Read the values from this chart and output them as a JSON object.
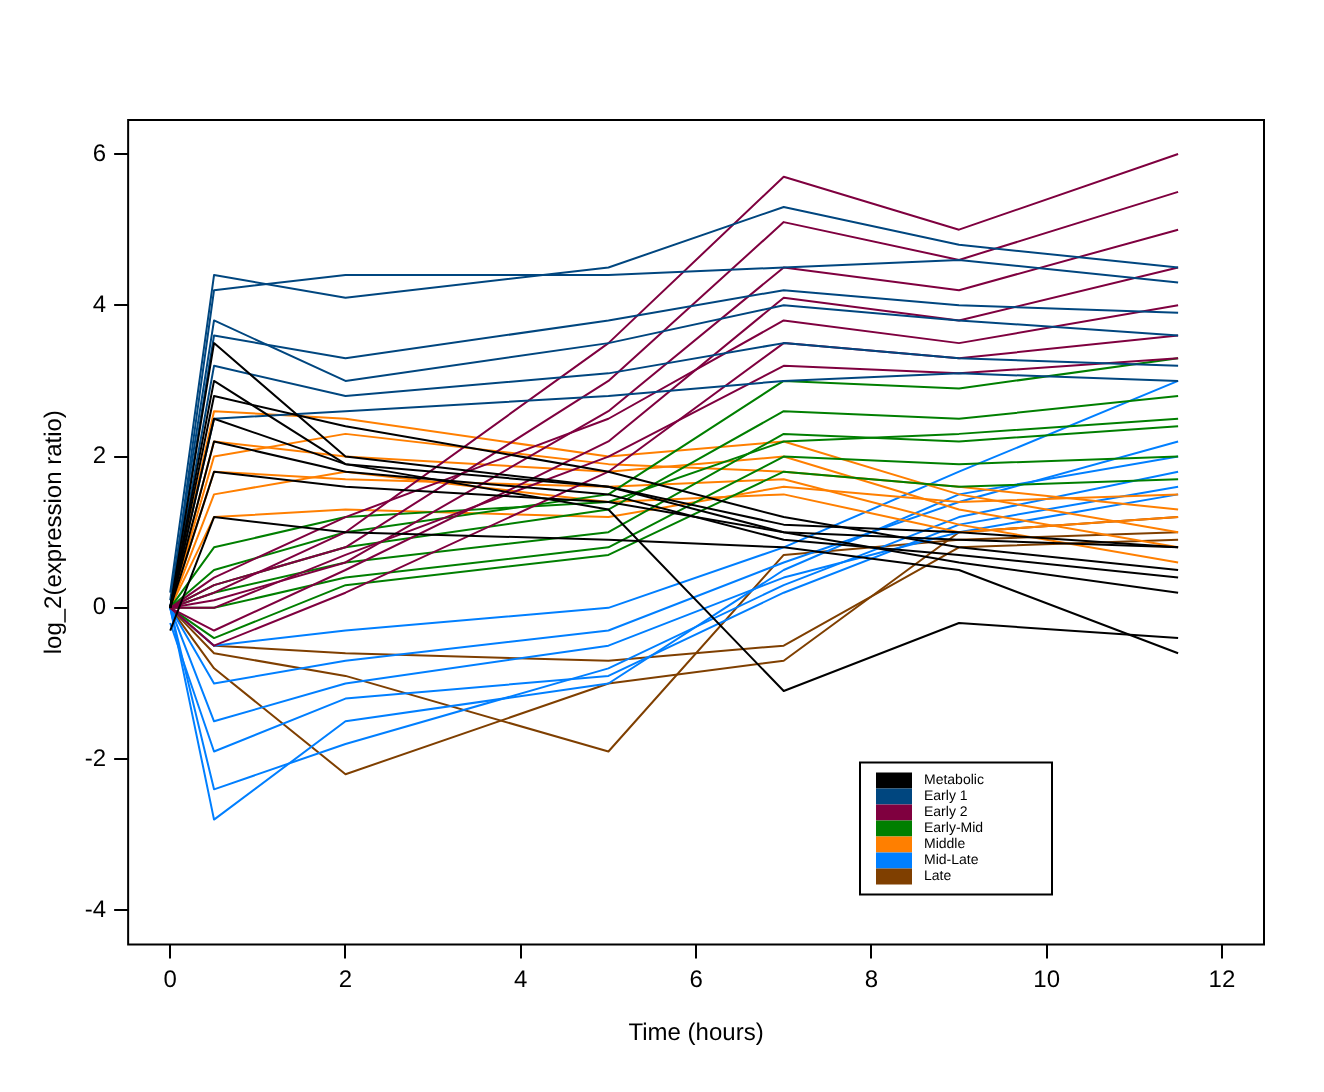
{
  "chart_data": {
    "type": "line",
    "xlabel": "Time (hours)",
    "ylabel": "log_2(expression ratio)",
    "x": [
      0,
      0.5,
      2,
      5,
      7,
      9,
      11.5
    ],
    "xlim": [
      -0.48,
      12.48
    ],
    "ylim": [
      -4.45,
      6.45
    ],
    "xticks": [
      0,
      2,
      4,
      6,
      8,
      10,
      12
    ],
    "yticks": [
      -4,
      -2,
      0,
      2,
      4,
      6
    ],
    "legend": "bottom right",
    "marker": "none",
    "line_style": "solid",
    "series": [
      {
        "name": "Metabolic",
        "color": "#000000",
        "values": [
          0,
          3.5,
          2.0,
          1.6,
          1.0,
          0.6,
          0.2
        ]
      },
      {
        "color": "#000000",
        "values": [
          0,
          2.8,
          2.4,
          1.8,
          1.2,
          0.8,
          0.5
        ]
      },
      {
        "color": "#000000",
        "values": [
          0,
          2.2,
          1.8,
          1.5,
          0.9,
          0.7,
          0.4
        ]
      },
      {
        "color": "#000000",
        "values": [
          0,
          1.8,
          1.6,
          1.4,
          1.0,
          0.9,
          0.8
        ]
      },
      {
        "color": "#000000",
        "values": [
          0,
          3.0,
          1.9,
          1.3,
          -1.1,
          -0.2,
          -0.4
        ]
      },
      {
        "color": "#000000",
        "values": [
          -0.3,
          1.2,
          1.0,
          0.9,
          0.8,
          0.5,
          -0.6
        ]
      },
      {
        "color": "#000000",
        "values": [
          0,
          2.5,
          1.9,
          1.6,
          1.1,
          1.0,
          0.8
        ]
      },
      {
        "name": "Early 1",
        "color": "#00467f",
        "values": [
          0.2,
          4.4,
          4.1,
          4.5,
          5.3,
          4.8,
          4.5
        ]
      },
      {
        "color": "#00467f",
        "values": [
          0,
          4.2,
          4.4,
          4.4,
          4.5,
          4.6,
          4.3
        ]
      },
      {
        "color": "#00467f",
        "values": [
          0.1,
          3.8,
          3.0,
          3.5,
          4.0,
          3.8,
          3.6
        ]
      },
      {
        "color": "#00467f",
        "values": [
          0,
          3.2,
          2.8,
          3.1,
          3.5,
          3.3,
          3.2
        ]
      },
      {
        "color": "#00467f",
        "values": [
          0,
          2.5,
          2.6,
          2.8,
          3.0,
          3.1,
          3.0
        ]
      },
      {
        "color": "#00467f",
        "values": [
          0,
          3.6,
          3.3,
          3.8,
          4.2,
          4.0,
          3.9
        ]
      },
      {
        "name": "Early 2",
        "color": "#7f003f",
        "values": [
          0,
          0.2,
          1.0,
          3.5,
          5.7,
          5.0,
          6.0
        ]
      },
      {
        "color": "#7f003f",
        "values": [
          0,
          0.3,
          0.8,
          3.0,
          5.1,
          4.6,
          5.5
        ]
      },
      {
        "color": "#7f003f",
        "values": [
          0,
          0.1,
          0.6,
          2.6,
          4.5,
          4.2,
          5.0
        ]
      },
      {
        "color": "#7f003f",
        "values": [
          0,
          -0.3,
          0.5,
          2.2,
          4.1,
          3.8,
          4.5
        ]
      },
      {
        "color": "#7f003f",
        "values": [
          0,
          0.4,
          1.2,
          2.5,
          3.8,
          3.5,
          4.0
        ]
      },
      {
        "color": "#7f003f",
        "values": [
          0,
          -0.5,
          0.2,
          1.8,
          3.5,
          3.3,
          3.6
        ]
      },
      {
        "color": "#7f003f",
        "values": [
          0,
          0.0,
          0.7,
          2.0,
          3.2,
          3.1,
          3.3
        ]
      },
      {
        "name": "Early-Mid",
        "color": "#007f00",
        "values": [
          0,
          0.5,
          1.0,
          1.5,
          3.0,
          2.9,
          3.3
        ]
      },
      {
        "color": "#007f00",
        "values": [
          0,
          0.3,
          0.8,
          1.3,
          2.6,
          2.5,
          2.8
        ]
      },
      {
        "color": "#007f00",
        "values": [
          0,
          0.2,
          0.6,
          1.0,
          2.3,
          2.2,
          2.4
        ]
      },
      {
        "color": "#007f00",
        "values": [
          0,
          0.0,
          0.4,
          0.8,
          2.0,
          1.9,
          2.0
        ]
      },
      {
        "color": "#007f00",
        "values": [
          0,
          -0.4,
          0.3,
          0.7,
          1.8,
          1.6,
          1.7
        ]
      },
      {
        "color": "#007f00",
        "values": [
          0,
          0.8,
          1.2,
          1.4,
          2.2,
          2.3,
          2.5
        ]
      },
      {
        "name": "Middle",
        "color": "#ff7f00",
        "values": [
          0,
          2.6,
          2.5,
          2.0,
          2.2,
          1.5,
          1.0
        ]
      },
      {
        "color": "#ff7f00",
        "values": [
          0,
          2.2,
          2.0,
          1.8,
          2.0,
          1.3,
          0.8
        ]
      },
      {
        "color": "#ff7f00",
        "values": [
          0,
          1.8,
          1.7,
          1.6,
          1.7,
          1.1,
          0.6
        ]
      },
      {
        "color": "#ff7f00",
        "values": [
          0,
          1.5,
          1.8,
          1.4,
          1.5,
          1.0,
          1.2
        ]
      },
      {
        "color": "#ff7f00",
        "values": [
          0,
          1.2,
          1.3,
          1.2,
          1.6,
          1.4,
          1.5
        ]
      },
      {
        "color": "#ff7f00",
        "values": [
          0,
          2.0,
          2.3,
          1.9,
          1.8,
          1.6,
          1.3
        ]
      },
      {
        "name": "Mid-Late",
        "color": "#007fff",
        "values": [
          0,
          -2.8,
          -1.5,
          -1.0,
          0.5,
          1.5,
          2.0
        ]
      },
      {
        "color": "#007fff",
        "values": [
          0,
          -2.4,
          -1.8,
          -0.8,
          0.3,
          1.2,
          1.8
        ]
      },
      {
        "color": "#007fff",
        "values": [
          0,
          -1.5,
          -1.0,
          -0.5,
          0.4,
          1.0,
          1.5
        ]
      },
      {
        "color": "#007fff",
        "values": [
          0,
          -1.0,
          -0.7,
          -0.3,
          0.6,
          1.4,
          2.2
        ]
      },
      {
        "color": "#007fff",
        "values": [
          0,
          -0.5,
          -0.3,
          0.0,
          0.8,
          1.8,
          3.0
        ]
      },
      {
        "color": "#007fff",
        "values": [
          -0.2,
          -1.9,
          -1.2,
          -0.9,
          0.2,
          1.1,
          1.6
        ]
      },
      {
        "name": "Late",
        "color": "#7f3f00",
        "values": [
          0,
          -0.8,
          -2.2,
          -1.0,
          -0.7,
          1.0,
          1.2
        ]
      },
      {
        "color": "#7f3f00",
        "values": [
          0,
          -0.6,
          -0.9,
          -1.9,
          0.7,
          0.9,
          1.0
        ]
      },
      {
        "color": "#7f3f00",
        "values": [
          0,
          -0.5,
          -0.6,
          -0.7,
          -0.5,
          0.8,
          0.9
        ]
      }
    ]
  }
}
